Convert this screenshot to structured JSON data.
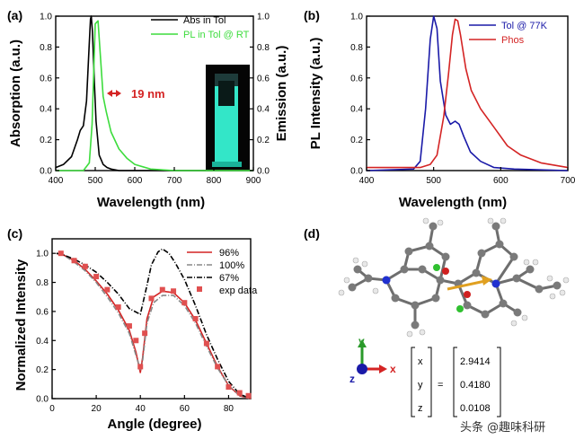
{
  "colors": {
    "black": "#000000",
    "green": "#3ddc3d",
    "blue": "#1a1aa8",
    "red": "#d42424",
    "grey": "#888888",
    "atom_c": "#7a7a7a",
    "atom_h": "#e8e8e8",
    "atom_n": "#2030d0",
    "atom_o": "#d02020",
    "atom_b": "#30c030",
    "arrow": "#e0a020"
  },
  "watermark": "头条 @趣味科研",
  "panel_a": {
    "label": "(a)",
    "annotation": "19 nm",
    "icons": [
      "cuvette-photo"
    ]
  },
  "panel_b": {
    "label": "(b)"
  },
  "panel_c": {
    "label": "(c)"
  },
  "panel_d": {
    "label": "(d)",
    "axes": {
      "x": "x",
      "y": "y",
      "z": "z"
    },
    "vector": {
      "equals": "=",
      "rows": [
        {
          "axis": "x",
          "value": "2.9414"
        },
        {
          "axis": "y",
          "value": "0.4180"
        },
        {
          "axis": "z",
          "value": "0.0108"
        }
      ]
    }
  },
  "chart_data": [
    {
      "panel": "a",
      "type": "line",
      "xlabel": "Wavelength (nm)",
      "ylabel": "Absorption (a.u.)",
      "y2label": "Emission (a.u.)",
      "xlim": [
        400,
        900
      ],
      "ylim": [
        0,
        1.0
      ],
      "y2lim": [
        0,
        1.0
      ],
      "xticks": [
        400,
        500,
        600,
        700,
        800,
        900
      ],
      "yticks": [
        0,
        0.2,
        0.4,
        0.6,
        0.8,
        1.0
      ],
      "xtick_labels": [
        "400",
        "500",
        "600",
        "700",
        "800",
        "900"
      ],
      "ytick_labels": [
        "0.0",
        "0.2",
        "0.4",
        "0.6",
        "0.8",
        "1.0"
      ],
      "y2tick_labels": [
        "0.0",
        "0.2",
        "0.4",
        "0.6",
        "0.8",
        "1.0"
      ],
      "legend": [
        "Abs in Tol",
        "PL in Tol @ RT"
      ],
      "series": [
        {
          "name": "Abs in Tol",
          "color": "#000000",
          "x": [
            400,
            420,
            440,
            455,
            462,
            470,
            478,
            484,
            488,
            490,
            493,
            497,
            502,
            510,
            520,
            530,
            540,
            560,
            600,
            700,
            900
          ],
          "y": [
            0.02,
            0.04,
            0.09,
            0.2,
            0.26,
            0.29,
            0.45,
            0.78,
            0.98,
            1.0,
            0.9,
            0.62,
            0.32,
            0.1,
            0.04,
            0.02,
            0.01,
            0.0,
            0.0,
            0.0,
            0.0
          ]
        },
        {
          "name": "PL in Tol @ RT",
          "color": "#3ddc3d",
          "x": [
            400,
            470,
            485,
            492,
            500,
            507,
            512,
            520,
            528,
            540,
            560,
            580,
            600,
            640,
            700,
            900
          ],
          "y": [
            0.0,
            0.0,
            0.05,
            0.3,
            0.95,
            0.97,
            0.78,
            0.48,
            0.38,
            0.25,
            0.14,
            0.08,
            0.04,
            0.01,
            0.0,
            0.0
          ]
        }
      ]
    },
    {
      "panel": "b",
      "type": "line",
      "xlabel": "Wavelength (nm)",
      "ylabel": "PL Intensity (a.u.)",
      "xlim": [
        400,
        700
      ],
      "ylim": [
        0,
        1.0
      ],
      "xticks": [
        400,
        500,
        600,
        700
      ],
      "yticks": [
        0,
        0.2,
        0.4,
        0.6,
        0.8,
        1.0
      ],
      "xtick_labels": [
        "400",
        "500",
        "600",
        "700"
      ],
      "ytick_labels": [
        "0.0",
        "0.2",
        "0.4",
        "0.6",
        "0.8",
        "1.0"
      ],
      "legend": [
        "Tol @ 77K",
        "Phos"
      ],
      "series": [
        {
          "name": "Tol @ 77K",
          "color": "#1a1aa8",
          "x": [
            400,
            470,
            480,
            488,
            495,
            500,
            505,
            510,
            518,
            525,
            532,
            538,
            545,
            555,
            570,
            590,
            620,
            700
          ],
          "y": [
            0.0,
            0.01,
            0.06,
            0.4,
            0.85,
            1.0,
            0.92,
            0.58,
            0.36,
            0.3,
            0.32,
            0.3,
            0.22,
            0.12,
            0.06,
            0.02,
            0.01,
            0.0
          ]
        },
        {
          "name": "Phos",
          "color": "#d42424",
          "x": [
            400,
            480,
            495,
            505,
            515,
            522,
            528,
            532,
            536,
            540,
            548,
            556,
            570,
            590,
            610,
            630,
            660,
            700
          ],
          "y": [
            0.02,
            0.02,
            0.04,
            0.1,
            0.35,
            0.62,
            0.88,
            0.98,
            0.97,
            0.88,
            0.66,
            0.52,
            0.4,
            0.28,
            0.16,
            0.1,
            0.05,
            0.02
          ]
        }
      ]
    },
    {
      "panel": "c",
      "type": "line",
      "xlabel": "Angle (degree)",
      "ylabel": "Normalized Intensity",
      "xlim": [
        0,
        90
      ],
      "ylim": [
        0,
        1.1
      ],
      "xticks": [
        0,
        20,
        40,
        60,
        80
      ],
      "yticks": [
        0,
        0.2,
        0.4,
        0.6,
        0.8,
        1.0
      ],
      "xtick_labels": [
        "0",
        "20",
        "40",
        "60",
        "80"
      ],
      "ytick_labels": [
        "0.0",
        "0.2",
        "0.4",
        "0.6",
        "0.8",
        "1.0"
      ],
      "legend": [
        "96%",
        "100%",
        "67%",
        "exp data"
      ],
      "series": [
        {
          "name": "96%",
          "color": "#d42424",
          "dash": "",
          "x": [
            2,
            5,
            10,
            15,
            20,
            25,
            30,
            35,
            38,
            40,
            41,
            43,
            46,
            50,
            55,
            60,
            65,
            70,
            75,
            80,
            85,
            90
          ],
          "y": [
            1.0,
            0.99,
            0.95,
            0.89,
            0.81,
            0.72,
            0.61,
            0.47,
            0.32,
            0.18,
            0.28,
            0.55,
            0.7,
            0.74,
            0.73,
            0.66,
            0.54,
            0.38,
            0.22,
            0.09,
            0.02,
            0.0
          ]
        },
        {
          "name": "100%",
          "color": "#888888",
          "dash": "6,2,1,2",
          "x": [
            2,
            5,
            10,
            15,
            20,
            25,
            30,
            35,
            38,
            40,
            41,
            43,
            46,
            50,
            55,
            60,
            65,
            70,
            75,
            80,
            85,
            90
          ],
          "y": [
            1.0,
            0.99,
            0.94,
            0.88,
            0.8,
            0.7,
            0.59,
            0.45,
            0.3,
            0.2,
            0.26,
            0.52,
            0.66,
            0.71,
            0.71,
            0.64,
            0.52,
            0.36,
            0.21,
            0.09,
            0.02,
            0.0
          ]
        },
        {
          "name": "67%",
          "color": "#000000",
          "dash": "6,2,1,2",
          "x": [
            2,
            5,
            10,
            15,
            20,
            25,
            30,
            35,
            40,
            43,
            45,
            48,
            50,
            53,
            56,
            60,
            65,
            70,
            75,
            80,
            85,
            90
          ],
          "y": [
            1.0,
            0.99,
            0.96,
            0.92,
            0.87,
            0.8,
            0.72,
            0.62,
            0.58,
            0.78,
            0.92,
            1.01,
            1.03,
            1.0,
            0.93,
            0.82,
            0.64,
            0.44,
            0.27,
            0.12,
            0.03,
            0.0
          ]
        },
        {
          "name": "exp data",
          "color": "#d42424",
          "marker": "square",
          "x": [
            4,
            10,
            15,
            20,
            25,
            30,
            35,
            38,
            40,
            42,
            45,
            50,
            55,
            60,
            65,
            70,
            75,
            80,
            85,
            89
          ],
          "y": [
            1.0,
            0.95,
            0.91,
            0.84,
            0.75,
            0.63,
            0.5,
            0.4,
            0.22,
            0.45,
            0.69,
            0.75,
            0.74,
            0.66,
            0.55,
            0.38,
            0.22,
            0.08,
            0.04,
            0.02
          ]
        }
      ]
    }
  ]
}
